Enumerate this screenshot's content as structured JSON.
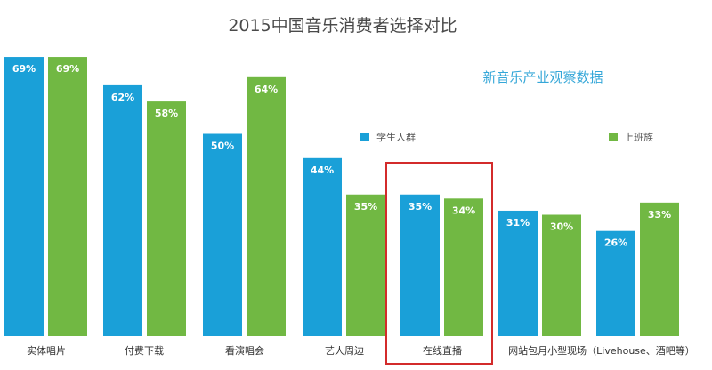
{
  "chart_data": {
    "type": "bar",
    "title": "2015中国音乐消费者选择对比",
    "subtitle": "新音乐产业观察数据",
    "categories": [
      "实体唱片",
      "付费下载",
      "看演唱会",
      "艺人周边",
      "在线直播",
      "网站包月小型现场（Livehouse、酒吧等）"
    ],
    "series": [
      {
        "name": "学生人群",
        "values": [
          69,
          62,
          50,
          44,
          35,
          31
        ],
        "labels": [
          "69%",
          "62%",
          "50%",
          "44%",
          "35%",
          "31%"
        ]
      },
      {
        "name": "上班族",
        "values": [
          69,
          58,
          64,
          35,
          34,
          30
        ],
        "labels": [
          "69%",
          "58%",
          "64%",
          "35%",
          "34%",
          "30%"
        ]
      },
      {
        "name": "",
        "values": [
          null,
          null,
          null,
          null,
          null,
          33
        ],
        "labels": [
          "",
          "",
          "",
          "",
          "",
          "33%"
        ]
      }
    ],
    "extra_student_bar": {
      "value": 26,
      "label": "26%"
    },
    "legend_position": "top-right",
    "highlight_category": "在线直播",
    "ylim": [
      0,
      75
    ],
    "grid": false
  },
  "colors": {
    "student": "#1aa0d8",
    "worker": "#71b843",
    "highlight_box": "#d32b2b",
    "background": "#ffffff"
  }
}
